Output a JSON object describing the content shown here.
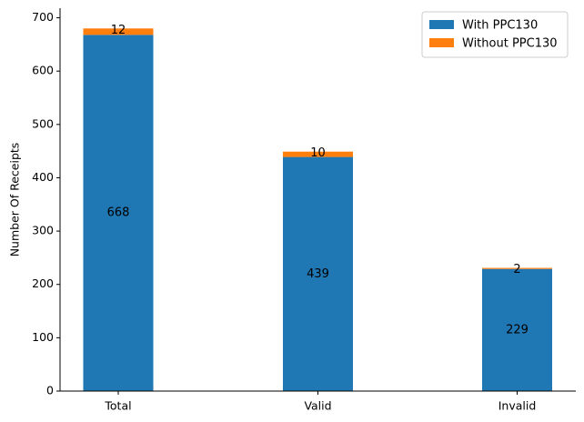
{
  "chart_data": {
    "type": "bar",
    "stacked": true,
    "categories": [
      "Total",
      "Valid",
      "Invalid"
    ],
    "series": [
      {
        "name": "With PPC130",
        "values": [
          668,
          439,
          229
        ],
        "color": "#1f77b4"
      },
      {
        "name": "Without PPC130",
        "values": [
          12,
          10,
          2
        ],
        "color": "#ff7f0e"
      }
    ],
    "ylabel": "Number Of Receipts",
    "xlabel": "",
    "ylim": [
      0,
      718
    ],
    "yticks": [
      0,
      100,
      200,
      300,
      400,
      500,
      600,
      700
    ],
    "grid": false,
    "legend_position": "top-right"
  }
}
